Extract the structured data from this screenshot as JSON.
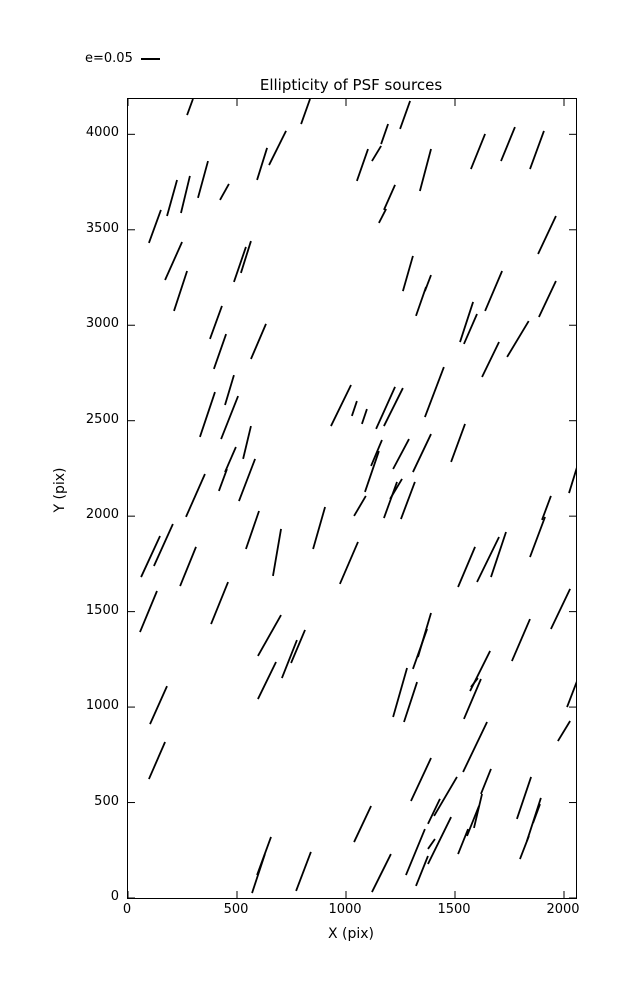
{
  "title": "Ellipticity of PSF sources",
  "legend": {
    "label": "e=0.05",
    "sample": "horizontal-line"
  },
  "colors": {
    "line": "#000000",
    "background": "#ffffff",
    "axes": "#000000"
  },
  "chart_data": {
    "type": "scatter",
    "subtype": "ellipticity whisker plot (short line segments, one per PSF source)",
    "title": "Ellipticity of PSF sources",
    "xlabel": "X (pix)",
    "ylabel": "Y (pix)",
    "xlim": [
      0,
      2055
    ],
    "ylim": [
      0,
      4185
    ],
    "x_ticks": [
      0,
      500,
      1000,
      1500,
      2000
    ],
    "y_ticks": [
      0,
      500,
      1000,
      1500,
      2000,
      2500,
      3000,
      3500,
      4000
    ],
    "grid": false,
    "legend_entry": "e=0.05",
    "legend_position": "above axes, upper left",
    "segments": [
      [
        271,
        4101,
        298,
        4185
      ],
      [
        592,
        3761,
        638,
        3929
      ],
      [
        647,
        3839,
        725,
        4018
      ],
      [
        243,
        3588,
        284,
        3782
      ],
      [
        321,
        3667,
        367,
        3860
      ],
      [
        179,
        3572,
        225,
        3761
      ],
      [
        96,
        3431,
        151,
        3604
      ],
      [
        422,
        3656,
        463,
        3740
      ],
      [
        170,
        3237,
        248,
        3436
      ],
      [
        486,
        3227,
        541,
        3410
      ],
      [
        518,
        3274,
        564,
        3441
      ],
      [
        794,
        4054,
        835,
        4185
      ],
      [
        1248,
        4028,
        1294,
        4175
      ],
      [
        1161,
        3949,
        1193,
        4054
      ],
      [
        1119,
        3860,
        1161,
        3939
      ],
      [
        1050,
        3756,
        1101,
        3923
      ],
      [
        1339,
        3703,
        1390,
        3923
      ],
      [
        1174,
        3604,
        1225,
        3735
      ],
      [
        1151,
        3536,
        1184,
        3609
      ],
      [
        1573,
        3818,
        1638,
        4002
      ],
      [
        1711,
        3860,
        1775,
        4038
      ],
      [
        1844,
        3818,
        1908,
        4018
      ],
      [
        1881,
        3373,
        1963,
        3572
      ],
      [
        211,
        3075,
        271,
        3284
      ],
      [
        376,
        2928,
        431,
        3101
      ],
      [
        394,
        2771,
        450,
        2954
      ],
      [
        564,
        2823,
        633,
        3007
      ],
      [
        445,
        2582,
        486,
        2739
      ],
      [
        330,
        2415,
        399,
        2650
      ],
      [
        427,
        2404,
        505,
        2629
      ],
      [
        1261,
        3179,
        1307,
        3363
      ],
      [
        1321,
        3049,
        1367,
        3200
      ],
      [
        931,
        2472,
        1023,
        2687
      ],
      [
        1027,
        2525,
        1050,
        2603
      ],
      [
        1073,
        2483,
        1096,
        2561
      ],
      [
        1138,
        2457,
        1225,
        2677
      ],
      [
        1174,
        2472,
        1261,
        2671
      ],
      [
        1362,
        3179,
        1390,
        3263
      ],
      [
        1638,
        3075,
        1716,
        3284
      ],
      [
        1523,
        2912,
        1583,
        3122
      ],
      [
        1541,
        2902,
        1601,
        3059
      ],
      [
        1624,
        2729,
        1702,
        2912
      ],
      [
        1739,
        2834,
        1838,
        3022
      ],
      [
        1885,
        3043,
        1963,
        3232
      ],
      [
        1362,
        2519,
        1449,
        2781
      ],
      [
        528,
        2300,
        564,
        2472
      ],
      [
        445,
        2231,
        495,
        2362
      ],
      [
        417,
        2132,
        454,
        2247
      ],
      [
        509,
        2079,
        583,
        2300
      ],
      [
        266,
        1996,
        353,
        2221
      ],
      [
        60,
        1681,
        147,
        1896
      ],
      [
        119,
        1739,
        206,
        1959
      ],
      [
        239,
        1634,
        312,
        1839
      ],
      [
        541,
        1828,
        601,
        2027
      ],
      [
        665,
        1687,
        702,
        1933
      ],
      [
        1115,
        2263,
        1165,
        2399
      ],
      [
        1087,
        2127,
        1151,
        2341
      ],
      [
        1216,
        2247,
        1289,
        2404
      ],
      [
        1307,
        2231,
        1390,
        2430
      ],
      [
        1202,
        2090,
        1257,
        2195
      ],
      [
        1174,
        1990,
        1234,
        2179
      ],
      [
        1252,
        1985,
        1316,
        2179
      ],
      [
        1037,
        2001,
        1091,
        2106
      ],
      [
        849,
        1828,
        904,
        2048
      ],
      [
        972,
        1645,
        1055,
        1865
      ],
      [
        1482,
        2284,
        1546,
        2483
      ],
      [
        2023,
        2121,
        2060,
        2258
      ],
      [
        1514,
        1629,
        1592,
        1839
      ],
      [
        1601,
        1655,
        1702,
        1891
      ],
      [
        1665,
        1681,
        1734,
        1917
      ],
      [
        1844,
        1786,
        1913,
        1996
      ],
      [
        1899,
        1980,
        1940,
        2106
      ],
      [
        55,
        1393,
        133,
        1608
      ],
      [
        381,
        1435,
        459,
        1655
      ],
      [
        596,
        1268,
        702,
        1482
      ],
      [
        596,
        1042,
        679,
        1236
      ],
      [
        101,
        911,
        179,
        1110
      ],
      [
        706,
        1152,
        775,
        1351
      ],
      [
        748,
        1231,
        812,
        1404
      ],
      [
        1216,
        948,
        1280,
        1205
      ],
      [
        1266,
        922,
        1326,
        1131
      ],
      [
        1307,
        1200,
        1372,
        1409
      ],
      [
        1330,
        1262,
        1390,
        1493
      ],
      [
        1940,
        1409,
        2028,
        1619
      ],
      [
        1761,
        1241,
        1844,
        1461
      ],
      [
        1569,
        1084,
        1661,
        1294
      ],
      [
        1541,
        938,
        1619,
        1147
      ],
      [
        1573,
        1105,
        1605,
        1152
      ],
      [
        1537,
        660,
        1647,
        922
      ],
      [
        2014,
        1000,
        2060,
        1137
      ],
      [
        1972,
        822,
        2028,
        927
      ],
      [
        96,
        623,
        170,
        817
      ],
      [
        569,
        26,
        628,
        230
      ],
      [
        592,
        120,
        656,
        320
      ],
      [
        1298,
        508,
        1390,
        733
      ],
      [
        1037,
        293,
        1115,
        482
      ],
      [
        771,
        37,
        839,
        241
      ],
      [
        1119,
        31,
        1206,
        230
      ],
      [
        1275,
        120,
        1362,
        361
      ],
      [
        1321,
        63,
        1376,
        220
      ],
      [
        1376,
        388,
        1431,
        519
      ],
      [
        1404,
        430,
        1509,
        634
      ],
      [
        1376,
        257,
        1408,
        309
      ],
      [
        1376,
        178,
        1482,
        424
      ],
      [
        1514,
        230,
        1560,
        361
      ],
      [
        1555,
        325,
        1610,
        482
      ],
      [
        1587,
        367,
        1624,
        545
      ],
      [
        1619,
        545,
        1665,
        676
      ],
      [
        1784,
        414,
        1849,
        634
      ],
      [
        1830,
        299,
        1894,
        524
      ],
      [
        1858,
        393,
        1890,
        492
      ],
      [
        1798,
        204,
        1839,
        325
      ]
    ]
  }
}
